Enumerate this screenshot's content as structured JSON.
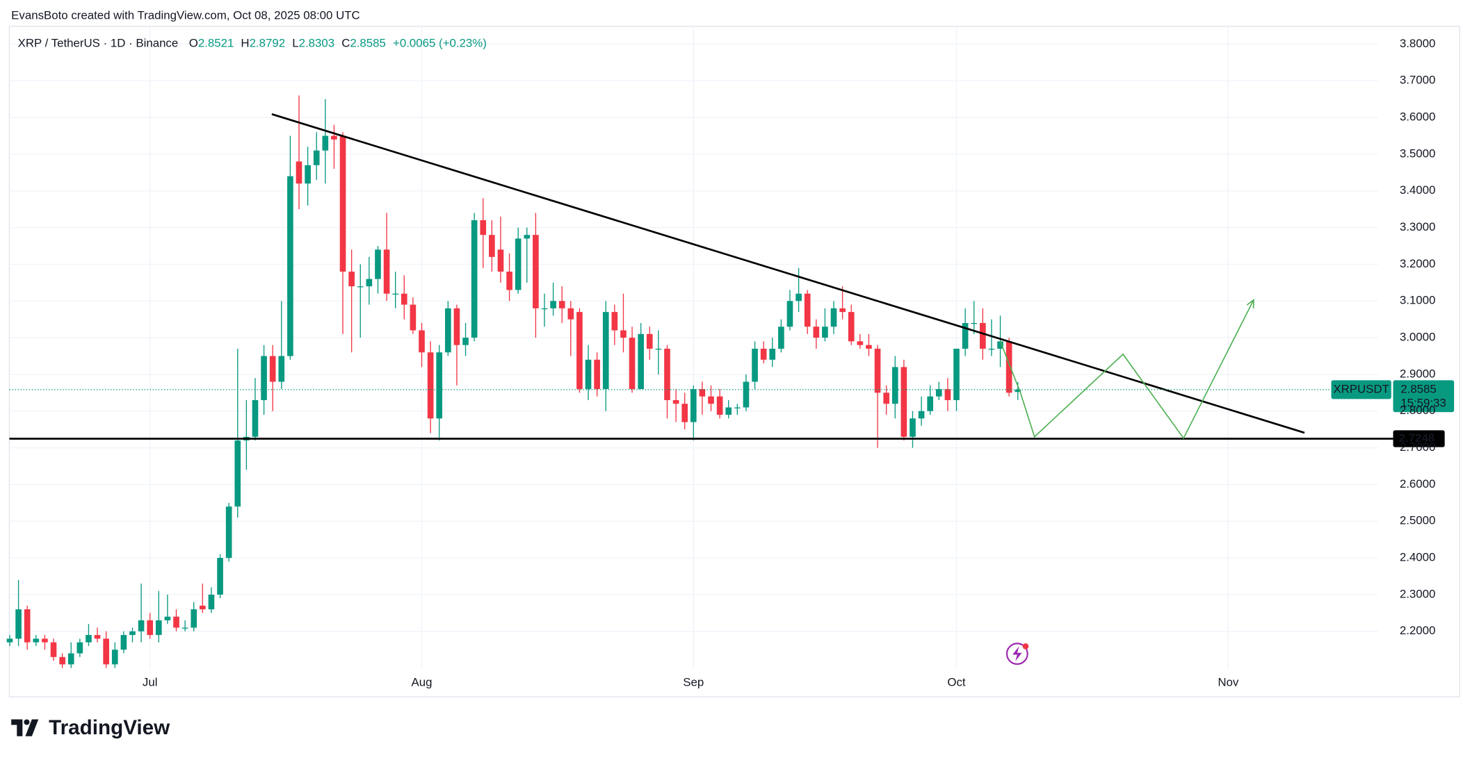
{
  "header": {
    "credit": "EvansBoto created with TradingView.com, Oct 08, 2025 08:00 UTC",
    "logo_text": "TradingView"
  },
  "chart_data": {
    "type": "candlestick",
    "title": "XRP / TetherUS · 1D · Binance",
    "ohlc_labels": {
      "open": "O",
      "high": "H",
      "low": "L",
      "close": "C"
    },
    "change_label": "+0.0065 (+0.23%)",
    "symbol": "XRPUSDT",
    "countdown": "15:59:33",
    "up_color": "#089981",
    "down_color": "#f23645",
    "xlim": [
      -0.04,
      156.1
    ],
    "xticks": [
      {
        "value": 16,
        "label": "Jul"
      },
      {
        "value": 47,
        "label": "Aug"
      },
      {
        "value": 78,
        "label": "Sep"
      },
      {
        "value": 108,
        "label": "Oct"
      },
      {
        "value": 139,
        "label": "Nov"
      }
    ],
    "ylim": [
      2.0215,
      3.8485
    ],
    "yticks": [
      {
        "value": 2.2,
        "label": "2.2000"
      },
      {
        "value": 2.3,
        "label": "2.3000"
      },
      {
        "value": 2.4,
        "label": "2.4000"
      },
      {
        "value": 2.5,
        "label": "2.5000"
      },
      {
        "value": 2.6,
        "label": "2.6000"
      },
      {
        "value": 2.7,
        "label": "2.7000"
      },
      {
        "value": 2.8,
        "label": "2.8000"
      },
      {
        "value": 2.9,
        "label": "2.9000"
      },
      {
        "value": 3.0,
        "label": "3.0000"
      },
      {
        "value": 3.1,
        "label": "3.1000"
      },
      {
        "value": 3.2,
        "label": "3.2000"
      },
      {
        "value": 3.3,
        "label": "3.3000"
      },
      {
        "value": 3.4,
        "label": "3.4000"
      },
      {
        "value": 3.5,
        "label": "3.5000"
      },
      {
        "value": 3.6,
        "label": "3.6000"
      },
      {
        "value": 3.7,
        "label": "3.7000"
      },
      {
        "value": 3.8,
        "label": "3.8000"
      }
    ],
    "grid": true,
    "series": {
      "open": [
        2.17,
        2.18,
        2.26,
        2.17,
        2.18,
        2.17,
        2.13,
        2.11,
        2.14,
        2.17,
        2.19,
        2.18,
        2.11,
        2.15,
        2.19,
        2.2,
        2.23,
        2.19,
        2.23,
        2.24,
        2.21,
        2.21,
        2.27,
        2.26,
        2.3,
        2.4,
        2.54,
        2.72,
        2.73,
        2.83,
        2.95,
        2.88,
        2.95,
        3.48,
        3.42,
        3.47,
        3.51,
        3.55,
        3.55,
        3.18,
        3.14,
        3.14,
        3.16,
        3.24,
        3.12,
        3.12,
        3.09,
        3.02,
        2.96,
        2.78,
        2.96,
        3.08,
        2.98,
        3.0,
        3.32,
        3.28,
        3.24,
        3.18,
        3.13,
        3.27,
        3.28,
        3.08,
        3.08,
        3.1,
        3.08,
        3.07,
        2.86,
        2.94,
        2.86,
        3.07,
        3.02,
        3.0,
        2.86,
        3.01,
        2.97,
        2.97,
        2.83,
        2.82,
        2.77,
        2.86,
        2.84,
        2.84,
        2.79,
        2.81,
        2.81,
        2.88,
        2.97,
        2.94,
        2.97,
        3.03,
        3.1,
        3.12,
        3.03,
        3.0,
        3.03,
        3.08,
        3.07,
        2.99,
        2.98,
        2.97,
        2.85,
        2.82,
        2.92,
        2.73,
        2.78,
        2.8,
        2.84,
        2.86,
        2.83,
        2.97,
        3.04,
        3.04,
        2.97,
        2.97,
        2.99,
        2.8521
      ],
      "high": [
        2.19,
        2.34,
        2.27,
        2.19,
        2.19,
        2.18,
        2.14,
        2.17,
        2.18,
        2.22,
        2.21,
        2.2,
        2.17,
        2.2,
        2.21,
        2.33,
        2.25,
        2.31,
        2.3,
        2.26,
        2.23,
        2.28,
        2.33,
        2.32,
        2.41,
        2.55,
        2.97,
        2.83,
        2.89,
        2.98,
        2.98,
        3.1,
        3.55,
        3.66,
        3.52,
        3.56,
        3.65,
        3.58,
        3.56,
        3.24,
        3.2,
        3.22,
        3.25,
        3.34,
        3.18,
        3.17,
        3.11,
        3.04,
        2.99,
        2.98,
        3.1,
        3.09,
        3.04,
        3.34,
        3.38,
        3.32,
        3.33,
        3.23,
        3.3,
        3.3,
        3.34,
        3.12,
        3.15,
        3.14,
        3.1,
        3.08,
        2.98,
        2.96,
        3.1,
        3.09,
        3.12,
        3.03,
        3.04,
        3.03,
        3.02,
        2.98,
        2.86,
        2.85,
        2.87,
        2.88,
        2.87,
        2.86,
        2.83,
        2.82,
        2.9,
        2.99,
        2.99,
        3.0,
        3.05,
        3.13,
        3.19,
        3.13,
        3.05,
        3.08,
        3.1,
        3.14,
        3.09,
        3.01,
        3.01,
        2.98,
        2.87,
        2.95,
        2.94,
        2.8,
        2.84,
        2.87,
        2.88,
        2.89,
        2.97,
        3.08,
        3.1,
        3.08,
        3.05,
        3.06,
        3.0,
        2.8792
      ],
      "low": [
        2.16,
        2.16,
        2.15,
        2.16,
        2.15,
        2.12,
        2.1,
        2.1,
        2.13,
        2.16,
        2.17,
        2.1,
        2.1,
        2.14,
        2.17,
        2.17,
        2.18,
        2.17,
        2.22,
        2.2,
        2.2,
        2.2,
        2.25,
        2.25,
        2.29,
        2.39,
        2.51,
        2.64,
        2.72,
        2.79,
        2.8,
        2.86,
        2.94,
        3.35,
        3.36,
        3.43,
        3.42,
        3.46,
        3.01,
        2.96,
        3.0,
        3.09,
        3.12,
        3.1,
        3.08,
        3.05,
        3.01,
        2.92,
        2.74,
        2.72,
        2.95,
        2.87,
        2.95,
        2.99,
        3.19,
        3.18,
        3.15,
        3.1,
        3.12,
        3.15,
        3.0,
        3.03,
        3.06,
        3.04,
        2.95,
        2.85,
        2.83,
        2.84,
        2.8,
        2.98,
        2.96,
        2.85,
        2.86,
        2.94,
        2.9,
        2.78,
        2.77,
        2.75,
        2.72,
        2.79,
        2.8,
        2.78,
        2.78,
        2.79,
        2.8,
        2.86,
        2.93,
        2.92,
        2.96,
        3.02,
        3.07,
        3.01,
        2.97,
        2.99,
        3.01,
        3.05,
        2.98,
        2.97,
        2.95,
        2.7,
        2.79,
        2.78,
        2.72,
        2.7,
        2.76,
        2.79,
        2.83,
        2.8,
        2.8,
        2.95,
        3.01,
        2.94,
        2.95,
        2.92,
        2.84,
        2.8303
      ],
      "close": [
        2.18,
        2.26,
        2.17,
        2.18,
        2.17,
        2.13,
        2.11,
        2.14,
        2.17,
        2.19,
        2.18,
        2.11,
        2.15,
        2.19,
        2.2,
        2.23,
        2.19,
        2.23,
        2.24,
        2.21,
        2.21,
        2.26,
        2.26,
        2.3,
        2.4,
        2.54,
        2.72,
        2.73,
        2.83,
        2.95,
        2.88,
        2.95,
        3.44,
        3.42,
        3.47,
        3.51,
        3.55,
        3.54,
        3.18,
        3.14,
        3.14,
        3.16,
        3.24,
        3.12,
        3.12,
        3.09,
        3.02,
        2.96,
        2.78,
        2.96,
        3.08,
        2.98,
        3.0,
        3.32,
        3.28,
        3.22,
        3.18,
        3.13,
        3.27,
        3.28,
        3.08,
        3.08,
        3.1,
        3.08,
        3.05,
        2.86,
        2.94,
        2.86,
        3.07,
        3.02,
        3.0,
        2.86,
        3.01,
        2.97,
        2.97,
        2.83,
        2.82,
        2.77,
        2.86,
        2.84,
        2.82,
        2.79,
        2.81,
        2.81,
        2.88,
        2.97,
        2.94,
        2.97,
        3.03,
        3.1,
        3.12,
        3.03,
        3.0,
        3.03,
        3.08,
        3.07,
        2.99,
        2.98,
        2.97,
        2.85,
        2.82,
        2.92,
        2.73,
        2.78,
        2.8,
        2.84,
        2.86,
        2.83,
        2.97,
        3.04,
        3.04,
        2.97,
        2.97,
        2.99,
        2.85,
        2.8585
      ]
    },
    "trendline": {
      "color": "#000000",
      "points": [
        [
          29.9,
          3.609
        ],
        [
          147.7,
          2.741
        ]
      ]
    },
    "support": {
      "value": 2.7248,
      "color": "#000000"
    },
    "projection": {
      "color": "#4caf50",
      "points": [
        [
          113.0,
          2.99
        ],
        [
          115.3,
          2.85
        ],
        [
          116.9,
          2.73
        ],
        [
          127.0,
          2.955
        ],
        [
          133.9,
          2.726
        ],
        [
          141.9,
          3.103
        ]
      ]
    }
  }
}
